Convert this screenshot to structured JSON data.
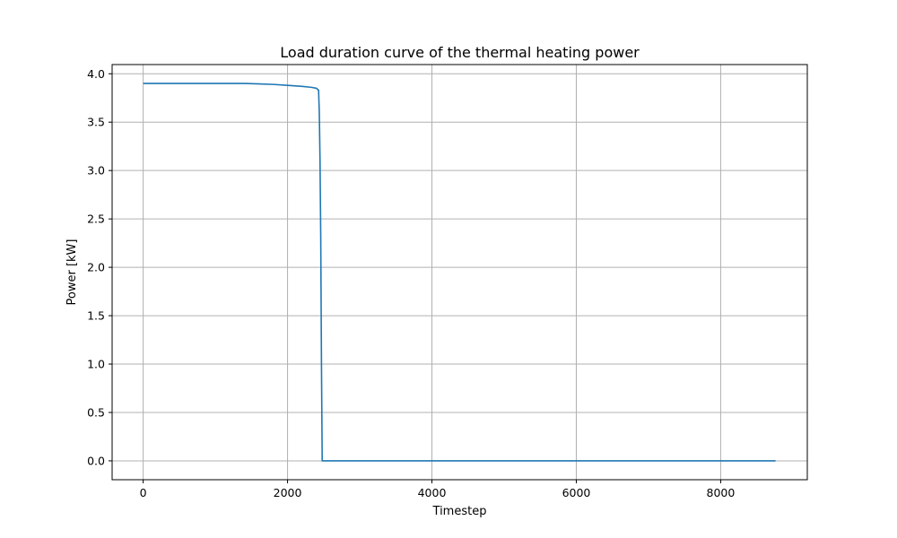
{
  "chart_data": {
    "type": "line",
    "title": "Load duration curve of the thermal heating power",
    "xlabel": "Timestep",
    "ylabel": "Power [kW]",
    "xlim": [
      -430,
      9200
    ],
    "ylim": [
      -0.195,
      4.095
    ],
    "xticks": [
      0,
      2000,
      4000,
      6000,
      8000
    ],
    "yticks": [
      0.0,
      0.5,
      1.0,
      1.5,
      2.0,
      2.5,
      3.0,
      3.5,
      4.0
    ],
    "xtick_labels": [
      "0",
      "2000",
      "4000",
      "6000",
      "8000"
    ],
    "ytick_labels": [
      "0.0",
      "0.5",
      "1.0",
      "1.5",
      "2.0",
      "2.5",
      "3.0",
      "3.5",
      "4.0"
    ],
    "grid": true,
    "series": [
      {
        "color": "#1f77b4",
        "x": [
          0,
          1400,
          1600,
          1800,
          2000,
          2200,
          2330,
          2400,
          2430,
          2440,
          2450,
          2460,
          2470,
          2480,
          8760
        ],
        "y": [
          3.9,
          3.9,
          3.895,
          3.89,
          3.88,
          3.87,
          3.86,
          3.85,
          3.83,
          3.6,
          3.1,
          2.3,
          1.0,
          0.0,
          0.0
        ]
      }
    ]
  }
}
